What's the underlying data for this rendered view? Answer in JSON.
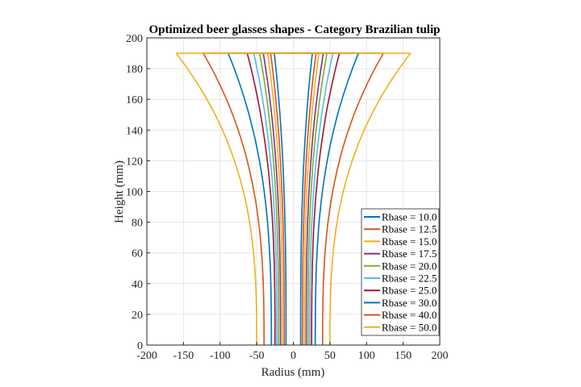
{
  "chart_data": {
    "type": "line",
    "title": "Optimized beer glasses shapes - Category Brazilian tulip",
    "xlabel": "Radius (mm)",
    "ylabel": "Height (mm)",
    "xlim": [
      -200,
      200
    ],
    "ylim": [
      0,
      200
    ],
    "xticks": [
      -200,
      -150,
      -100,
      -50,
      0,
      50,
      100,
      150,
      200
    ],
    "yticks": [
      0,
      20,
      40,
      60,
      80,
      100,
      120,
      140,
      160,
      180,
      200
    ],
    "grid": true,
    "legend_position": "bottom-right",
    "glass_height": 190,
    "profile_exponent": 2.8,
    "series": [
      {
        "name": "Rbase = 10.0",
        "base_radius": 10.0,
        "top_radius": 26,
        "color": "#0072BD"
      },
      {
        "name": "Rbase = 12.5",
        "base_radius": 12.5,
        "top_radius": 31,
        "color": "#D95319"
      },
      {
        "name": "Rbase = 15.0",
        "base_radius": 15.0,
        "top_radius": 35,
        "color": "#EDB120"
      },
      {
        "name": "Rbase = 17.5",
        "base_radius": 17.5,
        "top_radius": 41,
        "color": "#7E2F8E"
      },
      {
        "name": "Rbase = 20.0",
        "base_radius": 20.0,
        "top_radius": 46,
        "color": "#77AC30"
      },
      {
        "name": "Rbase = 22.5",
        "base_radius": 22.5,
        "top_radius": 54,
        "color": "#4DBEEE"
      },
      {
        "name": "Rbase = 25.0",
        "base_radius": 25.0,
        "top_radius": 63,
        "color": "#A2142F"
      },
      {
        "name": "Rbase = 30.0",
        "base_radius": 30.0,
        "top_radius": 89,
        "color": "#0072BD"
      },
      {
        "name": "Rbase = 40.0",
        "base_radius": 40.0,
        "top_radius": 123,
        "color": "#D95319"
      },
      {
        "name": "Rbase = 50.0",
        "base_radius": 50.0,
        "top_radius": 160,
        "color": "#EDB120"
      }
    ]
  }
}
